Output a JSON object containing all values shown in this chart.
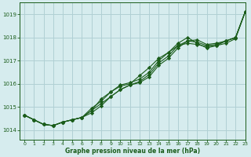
{
  "title": "Graphe pression niveau de la mer (hPa)",
  "bg_color": "#d6ecee",
  "grid_color": "#b0d0d4",
  "line_color": "#1a5c1a",
  "xlim": [
    -0.5,
    23
  ],
  "ylim": [
    1013.6,
    1019.5
  ],
  "yticks": [
    1014,
    1015,
    1016,
    1017,
    1018,
    1019
  ],
  "xticks": [
    0,
    1,
    2,
    3,
    4,
    5,
    6,
    7,
    8,
    9,
    10,
    11,
    12,
    13,
    14,
    15,
    16,
    17,
    18,
    19,
    20,
    21,
    22,
    23
  ],
  "series": [
    [
      1014.65,
      1014.45,
      1014.25,
      1014.2,
      1014.35,
      1014.45,
      1014.55,
      1014.75,
      1015.05,
      1015.45,
      1015.75,
      1015.95,
      1016.05,
      1016.3,
      1016.8,
      1017.1,
      1017.55,
      1017.85,
      1017.9,
      1017.7,
      1017.75,
      1017.85,
      1018.0,
      1019.1
    ],
    [
      1014.65,
      1014.45,
      1014.25,
      1014.2,
      1014.35,
      1014.45,
      1014.55,
      1014.95,
      1015.25,
      1015.65,
      1015.95,
      1016.05,
      1016.2,
      1016.5,
      1017.0,
      1017.35,
      1017.75,
      1018.0,
      1017.75,
      1017.55,
      1017.65,
      1017.85,
      1018.0,
      1019.1
    ],
    [
      1014.65,
      1014.45,
      1014.25,
      1014.2,
      1014.35,
      1014.45,
      1014.55,
      1014.85,
      1015.35,
      1015.65,
      1015.9,
      1016.0,
      1016.35,
      1016.7,
      1017.1,
      1017.35,
      1017.65,
      1017.75,
      1017.7,
      1017.6,
      1017.65,
      1017.75,
      1017.95,
      1019.1
    ],
    [
      1014.65,
      1014.45,
      1014.25,
      1014.2,
      1014.35,
      1014.45,
      1014.55,
      1014.85,
      1015.15,
      1015.45,
      1015.75,
      1015.95,
      1016.1,
      1016.4,
      1016.9,
      1017.2,
      1017.65,
      1017.85,
      1017.8,
      1017.65,
      1017.7,
      1017.85,
      1018.0,
      1019.1
    ]
  ]
}
